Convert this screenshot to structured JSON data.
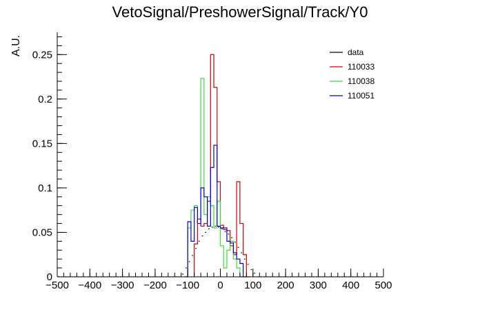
{
  "chart_data": {
    "type": "histogram",
    "title": "VetoSignal/PreshowerSignal/Track/Y0",
    "xlabel": "",
    "ylabel": "A.U.",
    "xlim": [
      -500,
      500
    ],
    "ylim": [
      0,
      0.275
    ],
    "bin_width": 10,
    "x_ticks": [
      -500,
      -400,
      -300,
      -200,
      -100,
      0,
      100,
      200,
      300,
      400,
      500
    ],
    "x_tick_labels": [
      "−500",
      "−400",
      "−300",
      "−200",
      "−100",
      "0",
      "100",
      "200",
      "300",
      "400",
      "500"
    ],
    "y_ticks": [
      0,
      0.05,
      0.1,
      0.15,
      0.2,
      0.25
    ],
    "y_tick_labels": [
      "0",
      "0.05",
      "0.1",
      "0.15",
      "0.2",
      "0.25"
    ],
    "grid": false,
    "legend_position": "top-right",
    "series": [
      {
        "name": "data",
        "color": "#000000",
        "style": "markers",
        "bins": [
          {
            "x": -500,
            "y": 0
          },
          {
            "x": -490,
            "y": 0
          },
          {
            "x": -480,
            "y": 0
          },
          {
            "x": -470,
            "y": 0
          },
          {
            "x": -460,
            "y": 0
          },
          {
            "x": -450,
            "y": 0
          },
          {
            "x": -440,
            "y": 0
          },
          {
            "x": -430,
            "y": 0
          },
          {
            "x": -420,
            "y": 0
          },
          {
            "x": -410,
            "y": 0
          },
          {
            "x": -400,
            "y": 0
          },
          {
            "x": -390,
            "y": 0
          },
          {
            "x": -380,
            "y": 0
          },
          {
            "x": -370,
            "y": 0
          },
          {
            "x": -360,
            "y": 0
          },
          {
            "x": -350,
            "y": 0
          },
          {
            "x": -340,
            "y": 0
          },
          {
            "x": -330,
            "y": 0
          },
          {
            "x": -320,
            "y": 0
          },
          {
            "x": -310,
            "y": 0
          },
          {
            "x": -300,
            "y": 0
          },
          {
            "x": -290,
            "y": 0
          },
          {
            "x": -280,
            "y": 0
          },
          {
            "x": -270,
            "y": 0
          },
          {
            "x": -260,
            "y": 0
          },
          {
            "x": -250,
            "y": 0
          },
          {
            "x": -240,
            "y": 0
          },
          {
            "x": -230,
            "y": 0
          },
          {
            "x": -220,
            "y": 0
          },
          {
            "x": -210,
            "y": 0
          },
          {
            "x": -200,
            "y": 0
          },
          {
            "x": -190,
            "y": 0
          },
          {
            "x": -180,
            "y": 0
          },
          {
            "x": -170,
            "y": 0
          },
          {
            "x": -160,
            "y": 0
          },
          {
            "x": -150,
            "y": 0
          },
          {
            "x": -140,
            "y": 0
          },
          {
            "x": -130,
            "y": 0
          },
          {
            "x": -120,
            "y": 0.003
          },
          {
            "x": -110,
            "y": 0.01
          },
          {
            "x": -100,
            "y": 0.017
          },
          {
            "x": -90,
            "y": 0.024
          },
          {
            "x": -80,
            "y": 0.032
          },
          {
            "x": -70,
            "y": 0.04
          },
          {
            "x": -60,
            "y": 0.046
          },
          {
            "x": -50,
            "y": 0.05
          },
          {
            "x": -40,
            "y": 0.054
          },
          {
            "x": -30,
            "y": 0.056
          },
          {
            "x": -20,
            "y": 0.057
          },
          {
            "x": -10,
            "y": 0.056
          },
          {
            "x": 0,
            "y": 0.054
          },
          {
            "x": 10,
            "y": 0.051
          },
          {
            "x": 20,
            "y": 0.048
          },
          {
            "x": 30,
            "y": 0.044
          },
          {
            "x": 40,
            "y": 0.039
          },
          {
            "x": 50,
            "y": 0.033
          },
          {
            "x": 60,
            "y": 0.027
          },
          {
            "x": 70,
            "y": 0.02
          },
          {
            "x": 80,
            "y": 0.014
          },
          {
            "x": 90,
            "y": 0.008
          },
          {
            "x": 100,
            "y": 0.004
          },
          {
            "x": 110,
            "y": 0
          },
          {
            "x": 120,
            "y": 0
          },
          {
            "x": 130,
            "y": 0
          },
          {
            "x": 140,
            "y": 0
          },
          {
            "x": 150,
            "y": 0
          },
          {
            "x": 160,
            "y": 0
          },
          {
            "x": 170,
            "y": 0
          },
          {
            "x": 180,
            "y": 0
          },
          {
            "x": 190,
            "y": 0
          },
          {
            "x": 200,
            "y": 0
          },
          {
            "x": 210,
            "y": 0
          },
          {
            "x": 220,
            "y": 0
          },
          {
            "x": 230,
            "y": 0
          },
          {
            "x": 240,
            "y": 0
          },
          {
            "x": 250,
            "y": 0
          },
          {
            "x": 260,
            "y": 0
          },
          {
            "x": 270,
            "y": 0
          },
          {
            "x": 280,
            "y": 0
          },
          {
            "x": 290,
            "y": 0
          },
          {
            "x": 300,
            "y": 0
          },
          {
            "x": 310,
            "y": 0
          },
          {
            "x": 320,
            "y": 0
          },
          {
            "x": 330,
            "y": 0
          },
          {
            "x": 340,
            "y": 0
          },
          {
            "x": 350,
            "y": 0
          },
          {
            "x": 360,
            "y": 0
          },
          {
            "x": 370,
            "y": 0
          },
          {
            "x": 380,
            "y": 0
          },
          {
            "x": 390,
            "y": 0
          },
          {
            "x": 400,
            "y": 0
          },
          {
            "x": 410,
            "y": 0
          },
          {
            "x": 420,
            "y": 0
          },
          {
            "x": 430,
            "y": 0
          },
          {
            "x": 440,
            "y": 0
          },
          {
            "x": 450,
            "y": 0
          },
          {
            "x": 460,
            "y": 0
          },
          {
            "x": 470,
            "y": 0
          },
          {
            "x": 480,
            "y": 0
          },
          {
            "x": 490,
            "y": 0
          }
        ]
      },
      {
        "name": "110033",
        "color": "#cc0000",
        "style": "step",
        "bins": [
          {
            "x": -80,
            "y": 0.037
          },
          {
            "x": -70,
            "y": 0.065
          },
          {
            "x": -60,
            "y": 0.057
          },
          {
            "x": -50,
            "y": 0.06
          },
          {
            "x": -40,
            "y": 0.085
          },
          {
            "x": -30,
            "y": 0.25
          },
          {
            "x": -20,
            "y": 0.213
          },
          {
            "x": -10,
            "y": 0.107
          },
          {
            "x": 0,
            "y": 0.058
          },
          {
            "x": 10,
            "y": 0.053
          },
          {
            "x": 20,
            "y": 0.052
          },
          {
            "x": 30,
            "y": 0.035
          },
          {
            "x": 40,
            "y": 0.025
          },
          {
            "x": 50,
            "y": 0.107
          },
          {
            "x": 60,
            "y": 0.06
          },
          {
            "x": 70,
            "y": 0.025
          },
          {
            "x": 80,
            "y": 0
          }
        ]
      },
      {
        "name": "110038",
        "color": "#33dd33",
        "style": "step",
        "bins": [
          {
            "x": -100,
            "y": 0.055
          },
          {
            "x": -90,
            "y": 0.075
          },
          {
            "x": -80,
            "y": 0.08
          },
          {
            "x": -70,
            "y": 0.06
          },
          {
            "x": -60,
            "y": 0.223
          },
          {
            "x": -50,
            "y": 0.07
          },
          {
            "x": -40,
            "y": 0.09
          },
          {
            "x": -30,
            "y": 0.08
          },
          {
            "x": -20,
            "y": 0.055
          },
          {
            "x": -10,
            "y": 0.085
          },
          {
            "x": 0,
            "y": 0.035
          },
          {
            "x": 10,
            "y": 0.01
          },
          {
            "x": 20,
            "y": 0.03
          },
          {
            "x": 30,
            "y": 0.04
          },
          {
            "x": 40,
            "y": 0.02
          },
          {
            "x": 50,
            "y": 0.01
          },
          {
            "x": 60,
            "y": 0
          }
        ]
      },
      {
        "name": "110051",
        "color": "#0000cc",
        "style": "step",
        "bins": [
          {
            "x": -110,
            "y": 0
          },
          {
            "x": -100,
            "y": 0.062
          },
          {
            "x": -90,
            "y": 0.04
          },
          {
            "x": -80,
            "y": 0.078
          },
          {
            "x": -70,
            "y": 0.06
          },
          {
            "x": -60,
            "y": 0.1
          },
          {
            "x": -50,
            "y": 0.09
          },
          {
            "x": -40,
            "y": 0.057
          },
          {
            "x": -30,
            "y": 0.123
          },
          {
            "x": -20,
            "y": 0.148
          },
          {
            "x": -10,
            "y": 0.057
          },
          {
            "x": 0,
            "y": 0.055
          },
          {
            "x": 10,
            "y": 0.055
          },
          {
            "x": 20,
            "y": 0.04
          },
          {
            "x": 30,
            "y": 0.038
          },
          {
            "x": 40,
            "y": 0.027
          },
          {
            "x": 50,
            "y": 0.02
          },
          {
            "x": 60,
            "y": 0.015
          },
          {
            "x": 70,
            "y": 0
          }
        ]
      }
    ]
  }
}
